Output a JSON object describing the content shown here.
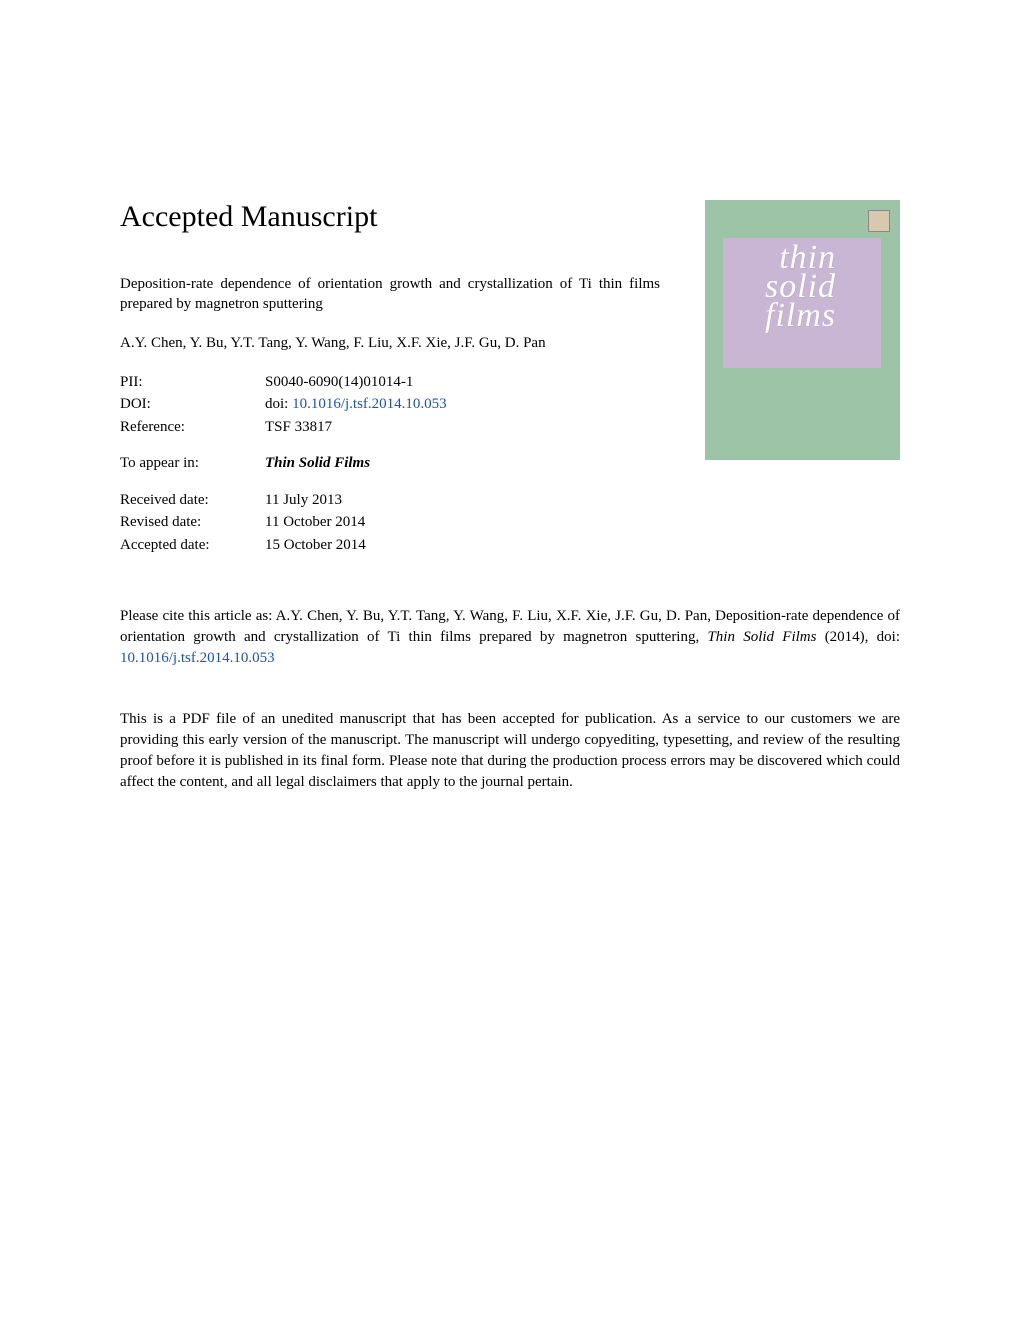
{
  "heading": "Accepted Manuscript",
  "title": "Deposition-rate dependence of orientation growth and crystallization of Ti thin films prepared by magnetron sputtering",
  "authors": "A.Y. Chen, Y. Bu, Y.T. Tang, Y. Wang, F. Liu, X.F. Xie, J.F. Gu, D. Pan",
  "meta": {
    "pii_label": "PII:",
    "pii_value": "S0040-6090(14)01014-1",
    "doi_label": "DOI:",
    "doi_prefix": "doi: ",
    "doi_link": "10.1016/j.tsf.2014.10.053",
    "ref_label": "Reference:",
    "ref_value": "TSF 33817",
    "appear_label": "To appear in:",
    "appear_value": "Thin Solid Films",
    "received_label": "Received date:",
    "received_value": "11 July 2013",
    "revised_label": "Revised date:",
    "revised_value": "11 October 2014",
    "accepted_label": "Accepted date:",
    "accepted_value": "15 October 2014"
  },
  "cite": {
    "prefix": "Please cite this article as: A.Y. Chen, Y. Bu, Y.T. Tang, Y. Wang, F. Liu, X.F. Xie, J.F. Gu, D. Pan, Deposition-rate dependence of orientation growth and crystallization of Ti thin films prepared by magnetron sputtering, ",
    "journal": "Thin Solid Films",
    "suffix": " (2014),  doi: ",
    "link": "10.1016/j.tsf.2014.10.053"
  },
  "disclaimer": "This is a PDF file of an unedited manuscript that has been accepted for publication. As a service to our customers we are providing this early version of the manuscript. The manuscript will undergo copyediting, typesetting, and review of the resulting proof before it is published in its final form. Please note that during the production process errors may be discovered which could affect the content, and all legal disclaimers that apply to the journal pertain.",
  "cover": {
    "line1": "thin",
    "line2": "solid",
    "line3": "films"
  }
}
